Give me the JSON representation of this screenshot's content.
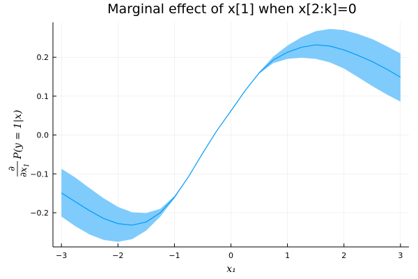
{
  "chart_data": {
    "type": "line",
    "title": "Marginal effect of x[1] when x[2:k]=0",
    "xlabel": "x₁",
    "ylabel_parts": {
      "numerator": "∂",
      "denominator_symbol": "∂x",
      "denominator_sub": "1",
      "expression": "P(y = 1|x)"
    },
    "xlim": [
      -3.15,
      3.15
    ],
    "ylim": [
      -0.288,
      0.29
    ],
    "xticks": [
      -3,
      -2,
      -1,
      0,
      1,
      2,
      3
    ],
    "xtick_labels": [
      "−3",
      "−2",
      "−1",
      "0",
      "1",
      "2",
      "3"
    ],
    "yticks": [
      -0.2,
      -0.1,
      0.0,
      0.1,
      0.2
    ],
    "ytick_labels": [
      "−0.2",
      "−0.1",
      "0.0",
      "0.1",
      "0.2"
    ],
    "grid": true,
    "legend": "none",
    "colors": {
      "line": "#009AFA",
      "band": "#7FCBFC"
    },
    "series": [
      {
        "x": [
          -3.0,
          -2.75,
          -2.5,
          -2.25,
          -2.0,
          -1.75,
          -1.5,
          -1.25,
          -1.0,
          -0.75,
          -0.5,
          -0.25,
          0.0,
          0.25,
          0.5,
          0.75,
          1.0,
          1.25,
          1.5,
          1.75,
          2.0,
          2.25,
          2.5,
          2.75,
          3.0
        ],
        "y": [
          -0.149,
          -0.172,
          -0.195,
          -0.215,
          -0.228,
          -0.232,
          -0.224,
          -0.2,
          -0.16,
          -0.107,
          -0.047,
          0.011,
          0.062,
          0.114,
          0.16,
          0.193,
          0.213,
          0.226,
          0.232,
          0.229,
          0.219,
          0.205,
          0.189,
          0.17,
          0.149
        ],
        "lower": [
          -0.21,
          -0.235,
          -0.256,
          -0.27,
          -0.275,
          -0.268,
          -0.246,
          -0.21,
          -0.163,
          -0.107,
          -0.047,
          0.011,
          0.062,
          0.114,
          0.158,
          0.185,
          0.196,
          0.199,
          0.196,
          0.187,
          0.171,
          0.149,
          0.126,
          0.105,
          0.086
        ],
        "upper": [
          -0.087,
          -0.11,
          -0.137,
          -0.163,
          -0.185,
          -0.199,
          -0.201,
          -0.19,
          -0.157,
          -0.107,
          -0.047,
          0.011,
          0.062,
          0.114,
          0.162,
          0.202,
          0.23,
          0.252,
          0.267,
          0.273,
          0.27,
          0.26,
          0.247,
          0.229,
          0.21
        ]
      }
    ]
  }
}
